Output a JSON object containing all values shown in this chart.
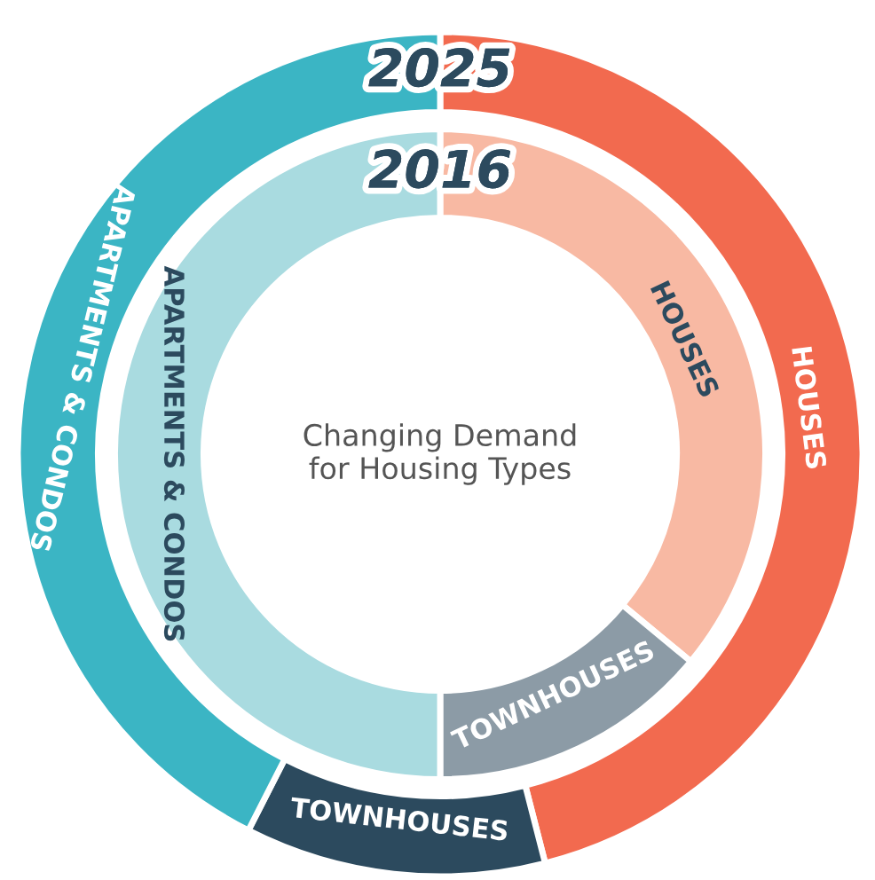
{
  "chart_data": {
    "type": "donut",
    "title": "Changing Demand\nfor Housing Types",
    "categories": [
      "HOUSES",
      "TOWNHOUSES",
      "APARTMENTS & CONDOS"
    ],
    "series": [
      {
        "name": "2025",
        "values": [
          46,
          11.5,
          42.5
        ],
        "colors": [
          "#f26a4f",
          "#2c4a5e",
          "#3bb5c4"
        ]
      },
      {
        "name": "2016",
        "values": [
          36,
          14,
          50
        ],
        "colors": [
          "#f8b9a3",
          "#8c9ba6",
          "#a9dbe0"
        ]
      }
    ]
  }
}
